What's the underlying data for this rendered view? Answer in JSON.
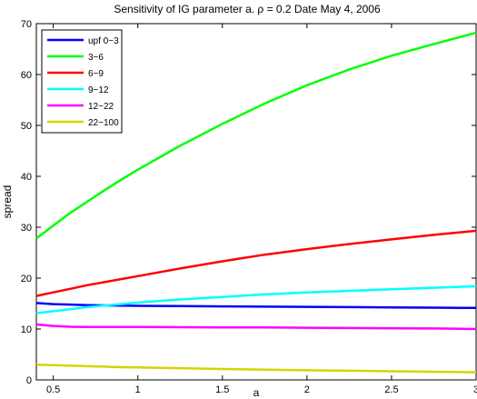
{
  "chart_data": {
    "type": "line",
    "title": "Sensitivity of IG parameter a. ρ = 0.2 Date May 4, 2006",
    "xlabel": "a",
    "ylabel": "spread",
    "xlim": [
      0.4,
      3.0
    ],
    "ylim": [
      0,
      70
    ],
    "xticks": [
      0.5,
      1,
      1.5,
      2,
      2.5,
      3
    ],
    "xtick_labels": [
      "0.5",
      "1",
      "1.5",
      "2",
      "2.5",
      "3"
    ],
    "yticks": [
      0,
      10,
      20,
      30,
      40,
      50,
      60,
      70
    ],
    "ytick_labels": [
      "0",
      "10",
      "20",
      "30",
      "40",
      "50",
      "60",
      "70"
    ],
    "grid": false,
    "legend_position": "top-left",
    "x": [
      0.4,
      0.5,
      0.6,
      0.7,
      0.8,
      0.9,
      1.0,
      1.25,
      1.5,
      1.75,
      2.0,
      2.25,
      2.5,
      2.75,
      3.0
    ],
    "series": [
      {
        "name": "upf 0−3",
        "color": "#0000ff",
        "values": [
          15.1,
          14.9,
          14.8,
          14.7,
          14.65,
          14.6,
          14.55,
          14.5,
          14.45,
          14.4,
          14.35,
          14.3,
          14.25,
          14.2,
          14.15
        ]
      },
      {
        "name": "3−6",
        "color": "#00ff00",
        "values": [
          27.8,
          30.3,
          32.8,
          35.0,
          37.2,
          39.3,
          41.3,
          46.0,
          50.3,
          54.3,
          57.9,
          61.0,
          63.7,
          66.0,
          68.2
        ]
      },
      {
        "name": "6−9",
        "color": "#ff0000",
        "values": [
          16.5,
          17.2,
          17.9,
          18.6,
          19.2,
          19.8,
          20.4,
          21.9,
          23.3,
          24.6,
          25.7,
          26.7,
          27.6,
          28.5,
          29.3
        ]
      },
      {
        "name": "9−12",
        "color": "#00ffff",
        "values": [
          13.1,
          13.5,
          13.9,
          14.3,
          14.6,
          14.9,
          15.2,
          15.8,
          16.3,
          16.8,
          17.2,
          17.5,
          17.8,
          18.1,
          18.4
        ]
      },
      {
        "name": "12−22",
        "color": "#ff00ff",
        "values": [
          10.9,
          10.6,
          10.45,
          10.4,
          10.4,
          10.4,
          10.4,
          10.35,
          10.3,
          10.3,
          10.25,
          10.2,
          10.15,
          10.1,
          10.0
        ]
      },
      {
        "name": "22−100",
        "color": "#d4d400",
        "values": [
          3.0,
          2.9,
          2.8,
          2.7,
          2.6,
          2.5,
          2.45,
          2.3,
          2.15,
          2.0,
          1.9,
          1.8,
          1.7,
          1.6,
          1.5
        ]
      }
    ]
  }
}
